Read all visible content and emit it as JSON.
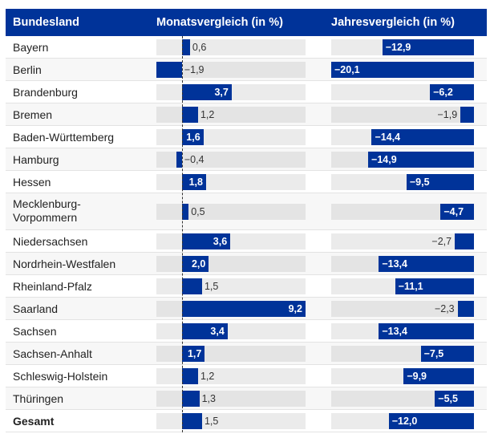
{
  "header": {
    "col1": "Bundesland",
    "col2": "Monatsvergleich (in %)",
    "col3": "Jahresvergleich (in %)"
  },
  "colors": {
    "header_bg": "#003399",
    "bar": "#003399",
    "track": "#ebebeb",
    "alt_row": "#f7f7f7"
  },
  "rows": [
    {
      "name": "Bayern",
      "month": 0.6,
      "month_label": "0,6",
      "year": -12.9,
      "year_label": "−12,9"
    },
    {
      "name": "Berlin",
      "month": -1.9,
      "month_label": "−1,9",
      "year": -20.1,
      "year_label": "−20,1"
    },
    {
      "name": "Brandenburg",
      "month": 3.7,
      "month_label": "3,7",
      "year": -6.2,
      "year_label": "−6,2"
    },
    {
      "name": "Bremen",
      "month": 1.2,
      "month_label": "1,2",
      "year": -1.9,
      "year_label": "−1,9"
    },
    {
      "name": "Baden-Württemberg",
      "month": 1.6,
      "month_label": "1,6",
      "year": -14.4,
      "year_label": "−14,4"
    },
    {
      "name": "Hamburg",
      "month": -0.4,
      "month_label": "−0,4",
      "year": -14.9,
      "year_label": "−14,9"
    },
    {
      "name": "Hessen",
      "month": 1.8,
      "month_label": "1,8",
      "year": -9.5,
      "year_label": "−9,5"
    },
    {
      "name": "Mecklenburg-\nVorpommern",
      "month": 0.5,
      "month_label": "0,5",
      "year": -4.7,
      "year_label": "−4,7"
    },
    {
      "name": "Niedersachsen",
      "month": 3.6,
      "month_label": "3,6",
      "year": -2.7,
      "year_label": "−2,7"
    },
    {
      "name": "Nordrhein-Westfalen",
      "month": 2.0,
      "month_label": "2,0",
      "year": -13.4,
      "year_label": "−13,4"
    },
    {
      "name": "Rheinland-Pfalz",
      "month": 1.5,
      "month_label": "1,5",
      "year": -11.1,
      "year_label": "−11,1"
    },
    {
      "name": "Saarland",
      "month": 9.2,
      "month_label": "9,2",
      "year": -2.3,
      "year_label": "−2,3"
    },
    {
      "name": "Sachsen",
      "month": 3.4,
      "month_label": "3,4",
      "year": -13.4,
      "year_label": "−13,4"
    },
    {
      "name": "Sachsen-Anhalt",
      "month": 1.7,
      "month_label": "1,7",
      "year": -7.5,
      "year_label": "−7,5"
    },
    {
      "name": "Schleswig-Holstein",
      "month": 1.2,
      "month_label": "1,2",
      "year": -9.9,
      "year_label": "−9,9"
    },
    {
      "name": "Thüringen",
      "month": 1.3,
      "month_label": "1,3",
      "year": -5.5,
      "year_label": "−5,5"
    },
    {
      "name": "Gesamt",
      "month": 1.5,
      "month_label": "1,5",
      "year": -12.0,
      "year_label": "−12,0",
      "total": true
    }
  ],
  "chart_data": {
    "type": "table",
    "title": "",
    "columns": [
      "Bundesland",
      "Monatsvergleich (in %)",
      "Jahresvergleich (in %)"
    ],
    "categories": [
      "Bayern",
      "Berlin",
      "Brandenburg",
      "Bremen",
      "Baden-Württemberg",
      "Hamburg",
      "Hessen",
      "Mecklenburg-Vorpommern",
      "Niedersachsen",
      "Nordrhein-Westfalen",
      "Rheinland-Pfalz",
      "Saarland",
      "Sachsen",
      "Sachsen-Anhalt",
      "Schleswig-Holstein",
      "Thüringen",
      "Gesamt"
    ],
    "series": [
      {
        "name": "Monatsvergleich (in %)",
        "values": [
          0.6,
          -1.9,
          3.7,
          1.2,
          1.6,
          -0.4,
          1.8,
          0.5,
          3.6,
          2.0,
          1.5,
          9.2,
          3.4,
          1.7,
          1.2,
          1.3,
          1.5
        ],
        "range": [
          -1.9,
          9.2
        ]
      },
      {
        "name": "Jahresvergleich (in %)",
        "values": [
          -12.9,
          -20.1,
          -6.2,
          -1.9,
          -14.4,
          -14.9,
          -9.5,
          -4.7,
          -2.7,
          -13.4,
          -11.1,
          -2.3,
          -13.4,
          -7.5,
          -9.9,
          -5.5,
          -12.0
        ],
        "range": [
          -20.1,
          0
        ]
      }
    ]
  }
}
